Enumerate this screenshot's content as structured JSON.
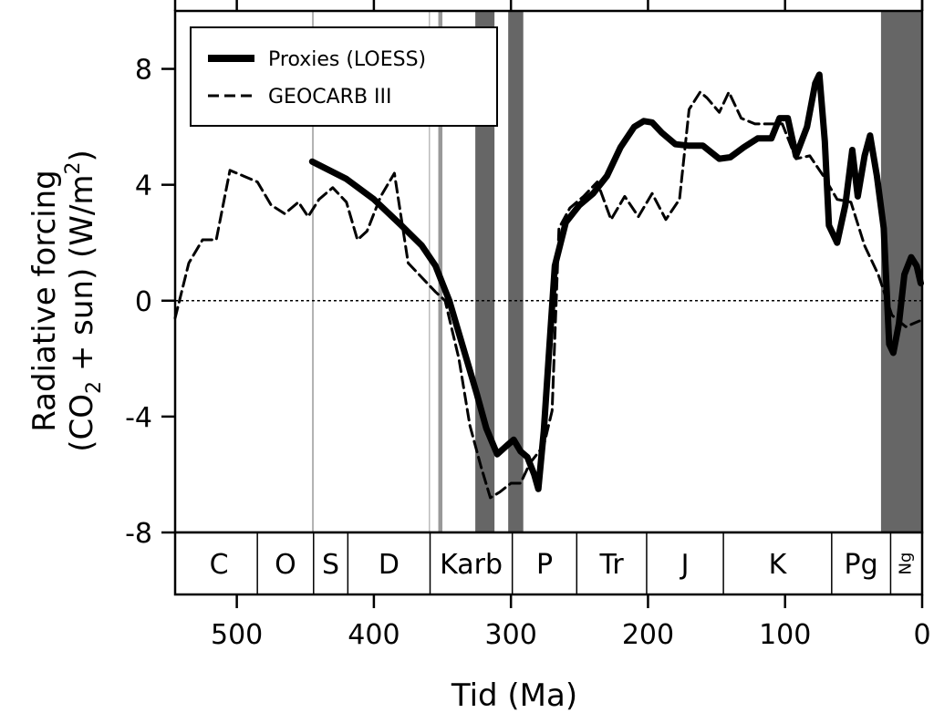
{
  "chart_data": {
    "type": "line",
    "xlabel": "Tid (Ma)",
    "ylabel_line1": "Radiative forcing",
    "ylabel_line2_pre": "(CO",
    "ylabel_line2_sub": "2",
    "ylabel_line2_mid": " + sun) (W/m",
    "ylabel_line2_sup": "2",
    "ylabel_line2_post": ")",
    "xlim": [
      545,
      0
    ],
    "ylim": [
      -8,
      10
    ],
    "xticks": [
      500,
      400,
      300,
      200,
      100,
      0
    ],
    "xtick_labels": [
      "500",
      "400",
      "300",
      "200",
      "100",
      "0"
    ],
    "yticks": [
      8,
      4,
      0,
      -4,
      -8
    ],
    "ytick_labels": [
      "8",
      "4",
      "0",
      "-4",
      "-8"
    ],
    "zero_line": 0,
    "legend": {
      "placement": "top-left",
      "entries": [
        {
          "label": "Proxies (LOESS)",
          "style": "solid-thick"
        },
        {
          "label": "GEOCARB III",
          "style": "dashed"
        }
      ]
    },
    "shaded_bands": [
      {
        "from": 445,
        "to": 444,
        "color": "#999999"
      },
      {
        "from": 360,
        "to": 359,
        "color": "#bbbbbb"
      },
      {
        "from": 353,
        "to": 350,
        "color": "#999999"
      },
      {
        "from": 326,
        "to": 312,
        "color": "#666666"
      },
      {
        "from": 302,
        "to": 291,
        "color": "#666666"
      },
      {
        "from": 30,
        "to": 0,
        "color": "#666666"
      }
    ],
    "periods": [
      {
        "label": "C",
        "from": 541,
        "to": 485
      },
      {
        "label": "O",
        "from": 485,
        "to": 444
      },
      {
        "label": "S",
        "from": 444,
        "to": 419
      },
      {
        "label": "D",
        "from": 419,
        "to": 359
      },
      {
        "label": "Karb",
        "from": 359,
        "to": 299
      },
      {
        "label": "P",
        "from": 299,
        "to": 252
      },
      {
        "label": "Tr",
        "from": 252,
        "to": 201
      },
      {
        "label": "J",
        "from": 201,
        "to": 145
      },
      {
        "label": "K",
        "from": 145,
        "to": 66
      },
      {
        "label": "Pg",
        "from": 66,
        "to": 23
      },
      {
        "label": "Ng",
        "from": 23,
        "to": 0,
        "rotated": true
      }
    ],
    "series": [
      {
        "name": "Proxies (LOESS)",
        "style": "solid",
        "color": "#000000",
        "points": [
          [
            445,
            4.8
          ],
          [
            420,
            4.2
          ],
          [
            400,
            3.5
          ],
          [
            380,
            2.6
          ],
          [
            365,
            1.9
          ],
          [
            355,
            1.2
          ],
          [
            345,
            0.0
          ],
          [
            335,
            -1.6
          ],
          [
            325,
            -3.2
          ],
          [
            318,
            -4.4
          ],
          [
            310,
            -5.3
          ],
          [
            303,
            -5.0
          ],
          [
            298,
            -4.8
          ],
          [
            293,
            -5.2
          ],
          [
            288,
            -5.4
          ],
          [
            283,
            -6.0
          ],
          [
            280,
            -6.5
          ],
          [
            276,
            -4.5
          ],
          [
            272,
            -1.6
          ],
          [
            268,
            1.2
          ],
          [
            260,
            2.7
          ],
          [
            250,
            3.3
          ],
          [
            240,
            3.7
          ],
          [
            230,
            4.3
          ],
          [
            220,
            5.3
          ],
          [
            210,
            6.0
          ],
          [
            203,
            6.2
          ],
          [
            197,
            6.15
          ],
          [
            190,
            5.8
          ],
          [
            180,
            5.4
          ],
          [
            170,
            5.35
          ],
          [
            160,
            5.35
          ],
          [
            148,
            4.9
          ],
          [
            140,
            4.95
          ],
          [
            130,
            5.3
          ],
          [
            120,
            5.6
          ],
          [
            110,
            5.6
          ],
          [
            104,
            6.3
          ],
          [
            98,
            6.3
          ],
          [
            92,
            5.0
          ],
          [
            84,
            6.0
          ],
          [
            78,
            7.5
          ],
          [
            75,
            7.8
          ],
          [
            71,
            5.5
          ],
          [
            68,
            2.6
          ],
          [
            62,
            2.0
          ],
          [
            56,
            3.3
          ],
          [
            51,
            5.2
          ],
          [
            47,
            3.6
          ],
          [
            42,
            5.0
          ],
          [
            38,
            5.7
          ],
          [
            33,
            4.3
          ],
          [
            28,
            2.5
          ],
          [
            24,
            -1.5
          ],
          [
            21,
            -1.8
          ],
          [
            17,
            -0.8
          ],
          [
            13,
            0.9
          ],
          [
            8,
            1.5
          ],
          [
            4,
            1.2
          ],
          [
            1,
            0.6
          ]
        ]
      },
      {
        "name": "GEOCARB III",
        "style": "dashed",
        "color": "#000000",
        "points": [
          [
            545,
            -0.6
          ],
          [
            535,
            1.3
          ],
          [
            525,
            2.1
          ],
          [
            515,
            2.1
          ],
          [
            505,
            4.5
          ],
          [
            495,
            4.3
          ],
          [
            485,
            4.1
          ],
          [
            475,
            3.3
          ],
          [
            465,
            3.0
          ],
          [
            455,
            3.4
          ],
          [
            448,
            2.9
          ],
          [
            440,
            3.5
          ],
          [
            430,
            3.9
          ],
          [
            420,
            3.4
          ],
          [
            412,
            2.1
          ],
          [
            405,
            2.4
          ],
          [
            395,
            3.6
          ],
          [
            385,
            4.4
          ],
          [
            375,
            1.3
          ],
          [
            365,
            0.8
          ],
          [
            355,
            0.3
          ],
          [
            348,
            0.0
          ],
          [
            338,
            -2.0
          ],
          [
            330,
            -4.3
          ],
          [
            322,
            -5.7
          ],
          [
            315,
            -6.8
          ],
          [
            308,
            -6.6
          ],
          [
            300,
            -6.3
          ],
          [
            293,
            -6.3
          ],
          [
            286,
            -5.6
          ],
          [
            276,
            -5.0
          ],
          [
            270,
            -3.8
          ],
          [
            265,
            2.5
          ],
          [
            257,
            3.2
          ],
          [
            247,
            3.6
          ],
          [
            237,
            4.1
          ],
          [
            227,
            2.8
          ],
          [
            217,
            3.6
          ],
          [
            207,
            2.9
          ],
          [
            197,
            3.7
          ],
          [
            187,
            2.8
          ],
          [
            177,
            3.5
          ],
          [
            170,
            6.6
          ],
          [
            162,
            7.2
          ],
          [
            157,
            7.0
          ],
          [
            148,
            6.5
          ],
          [
            141,
            7.2
          ],
          [
            132,
            6.3
          ],
          [
            122,
            6.1
          ],
          [
            112,
            6.1
          ],
          [
            102,
            6.1
          ],
          [
            92,
            4.9
          ],
          [
            82,
            5.0
          ],
          [
            72,
            4.3
          ],
          [
            62,
            3.5
          ],
          [
            52,
            3.4
          ],
          [
            42,
            1.9
          ],
          [
            32,
            0.9
          ],
          [
            22,
            -0.5
          ],
          [
            12,
            -0.9
          ],
          [
            2,
            -0.7
          ]
        ]
      }
    ]
  }
}
